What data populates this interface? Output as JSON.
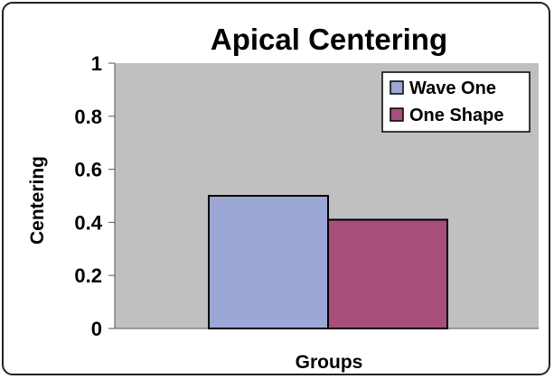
{
  "chart_data": {
    "type": "bar",
    "title": "Apical Centering",
    "xlabel": "Groups",
    "ylabel": "Centering",
    "categories": [
      ""
    ],
    "series": [
      {
        "name": "Wave One",
        "values": [
          0.5
        ],
        "color": "#9DA7D6"
      },
      {
        "name": "One Shape",
        "values": [
          0.41
        ],
        "color": "#A74E7B"
      }
    ],
    "ylim": [
      0,
      1
    ],
    "yticks": [
      "0",
      "0.2",
      "0.4",
      "0.6",
      "0.8",
      "1"
    ],
    "grid": false,
    "legend_position": "top-right",
    "plot_background": "#C0C0C0"
  }
}
